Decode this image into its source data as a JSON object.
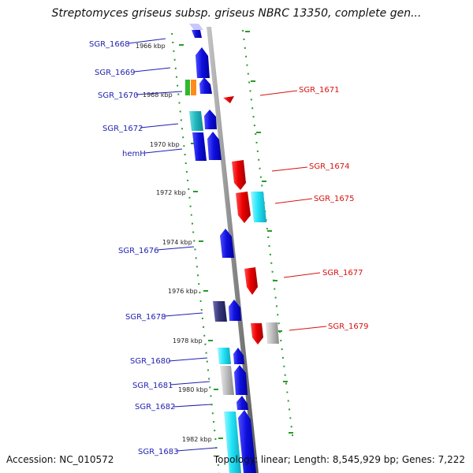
{
  "header": {
    "title": "Streptomyces griseus subsp. griseus NBRC 13350, complete gen..."
  },
  "footer": {
    "accession": "Accession: NC_010572",
    "topology": "Topology: linear; Length: 8,545,929 bp; Genes: 7,222"
  },
  "colors": {
    "left_label": "#1f1fb0",
    "right_label": "#d81010",
    "backbone": "#888888",
    "tick_dots": "#2a9a2a"
  },
  "kbp_labels": [
    "1966 kbp",
    "1968 kbp",
    "1970 kbp",
    "1972 kbp",
    "1974 kbp",
    "1976 kbp",
    "1978 kbp",
    "1980 kbp",
    "1982 kbp"
  ],
  "left_genes": [
    "SGR_1668",
    "SGR_1669",
    "SGR_1670",
    "SGR_1672",
    "hemH",
    "SGR_1676",
    "SGR_1678",
    "SGR_1680",
    "SGR_1681",
    "SGR_1682",
    "SGR_1683"
  ],
  "right_genes": [
    "SGR_1671",
    "SGR_1674",
    "SGR_1675",
    "SGR_1677",
    "SGR_1679"
  ]
}
